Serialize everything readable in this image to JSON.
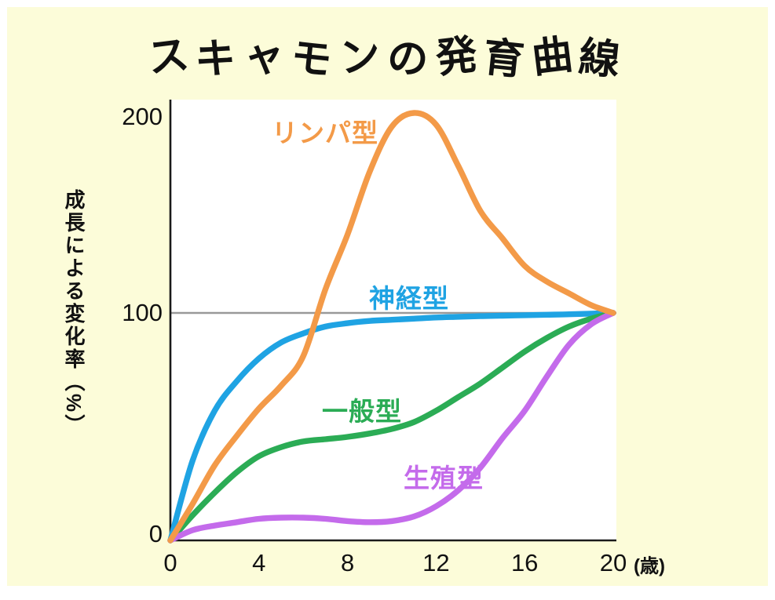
{
  "title": "スキャモンの発育曲線",
  "colors": {
    "page_background": "#FCFCD9",
    "plot_background": "#FFFFFF",
    "axis": "#1A1A1A",
    "reference_line": "#999999",
    "text": "#111111"
  },
  "y_axis": {
    "label": "成長による変化率（%）",
    "tick_labels": [
      "200",
      "100",
      "0"
    ]
  },
  "x_axis": {
    "tick_labels": [
      "0",
      "4",
      "8",
      "12",
      "16",
      "20"
    ],
    "unit_label": "(歳)"
  },
  "chart_data": {
    "type": "line",
    "title": "スキャモンの発育曲線",
    "xlabel": "(歳)",
    "ylabel": "成長による変化率（%）",
    "xlim": [
      0,
      20
    ],
    "ylim": [
      0,
      210
    ],
    "xticks": [
      0,
      4,
      8,
      12,
      16,
      20
    ],
    "yticks": [
      200,
      100,
      0
    ],
    "grid": false,
    "reference_line_y": 100,
    "legend_position": "inline-labels-on-curves",
    "x": [
      0,
      1,
      2,
      3,
      4,
      5,
      6,
      7,
      8,
      9,
      10,
      11,
      12,
      13,
      14,
      15,
      16,
      17,
      18,
      19,
      20
    ],
    "series": [
      {
        "name": "リンパ型",
        "color": "#F39A48",
        "values": [
          0,
          16,
          33,
          46,
          58,
          68,
          81,
          112,
          140,
          172,
          195,
          202,
          196,
          175,
          152,
          138,
          124,
          116,
          110,
          104,
          100
        ]
      },
      {
        "name": "神経型",
        "color": "#1FA3E3",
        "values": [
          0,
          35,
          57,
          70,
          80,
          87,
          91,
          94,
          95.5,
          96.5,
          97,
          97.5,
          98,
          98.3,
          98.6,
          98.8,
          99,
          99.2,
          99.4,
          99.7,
          100
        ]
      },
      {
        "name": "一般型",
        "color": "#2BAC55",
        "values": [
          0,
          11,
          21,
          30,
          37,
          41,
          43.5,
          44.5,
          45.5,
          47,
          49,
          52,
          57,
          63,
          69,
          76,
          83,
          89,
          94,
          97.5,
          100
        ]
      },
      {
        "name": "生殖型",
        "color": "#C46BEB",
        "values": [
          0,
          4.5,
          6.5,
          8,
          9.5,
          10,
          10,
          9.5,
          8.5,
          8,
          8.5,
          10.5,
          15,
          22,
          32,
          45,
          57,
          72,
          86,
          95,
          100
        ]
      }
    ]
  }
}
